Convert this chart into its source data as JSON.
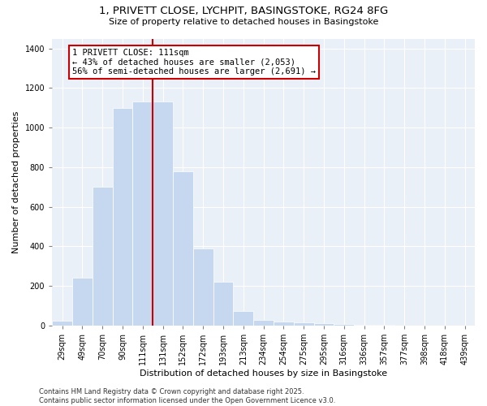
{
  "title_line1": "1, PRIVETT CLOSE, LYCHPIT, BASINGSTOKE, RG24 8FG",
  "title_line2": "Size of property relative to detached houses in Basingstoke",
  "xlabel": "Distribution of detached houses by size in Basingstoke",
  "ylabel": "Number of detached properties",
  "categories": [
    "29sqm",
    "49sqm",
    "70sqm",
    "90sqm",
    "111sqm",
    "131sqm",
    "152sqm",
    "172sqm",
    "193sqm",
    "213sqm",
    "234sqm",
    "254sqm",
    "275sqm",
    "295sqm",
    "316sqm",
    "336sqm",
    "357sqm",
    "377sqm",
    "398sqm",
    "418sqm",
    "439sqm"
  ],
  "values": [
    25,
    240,
    700,
    1100,
    1130,
    1130,
    780,
    390,
    220,
    75,
    30,
    20,
    15,
    10,
    8,
    5,
    2,
    1,
    0,
    0,
    0
  ],
  "bar_color": "#c5d8f0",
  "bar_edgecolor": "#c5d8f0",
  "vline_x_idx": 4,
  "vline_color": "#cc0000",
  "annotation_line1": "1 PRIVETT CLOSE: 111sqm",
  "annotation_line2": "← 43% of detached houses are smaller (2,053)",
  "annotation_line3": "56% of semi-detached houses are larger (2,691) →",
  "box_edgecolor": "#cc0000",
  "ylim": [
    0,
    1450
  ],
  "yticks": [
    0,
    200,
    400,
    600,
    800,
    1000,
    1200,
    1400
  ],
  "footer_line1": "Contains HM Land Registry data © Crown copyright and database right 2025.",
  "footer_line2": "Contains public sector information licensed under the Open Government Licence v3.0.",
  "bg_color": "#eaf0f8",
  "title_fontsize": 9.5,
  "subtitle_fontsize": 8,
  "axis_label_fontsize": 8,
  "tick_fontsize": 7,
  "annotation_fontsize": 7.5,
  "footer_fontsize": 6
}
